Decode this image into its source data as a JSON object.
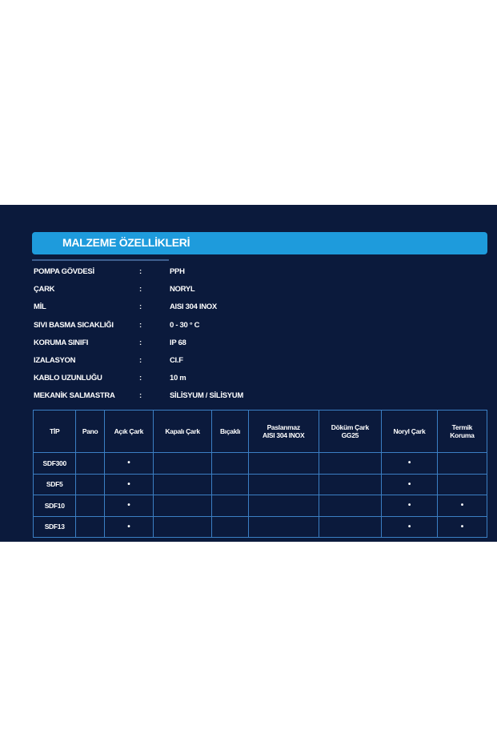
{
  "section_title": "MALZEME ÖZELLİKLERİ",
  "specs": [
    {
      "label": "POMPA GÖVDESİ",
      "value": "PPH"
    },
    {
      "label": "ÇARK",
      "value": "NORYL"
    },
    {
      "label": "MİL",
      "value": "AISI 304 INOX"
    },
    {
      "label": "SIVI BASMA SICAKLIĞI",
      "value": "0 - 30 ° C"
    },
    {
      "label": "KORUMA SINIFI",
      "value": "IP 68"
    },
    {
      "label": "IZALASYON",
      "value": "CI.F"
    },
    {
      "label": "KABLO UZUNLUĞU",
      "value": "10 m"
    },
    {
      "label": "MEKANİK SALMASTRA",
      "value": "SİLİSYUM / SİLİSYUM"
    }
  ],
  "separator": ":",
  "table": {
    "headers": [
      "TİP",
      "Pano",
      "Açık Çark",
      "Kapalı Çark",
      "Bıçaklı",
      "Paslanmaz\nAISI 304 INOX",
      "Döküm Çark\nGG25",
      "Noryl Çark",
      "Termik\nKoruma"
    ],
    "rows": [
      [
        "SDF300",
        "",
        "•",
        "",
        "",
        "",
        "",
        "•",
        ""
      ],
      [
        "SDF5",
        "",
        "•",
        "",
        "",
        "",
        "",
        "•",
        ""
      ],
      [
        "SDF10",
        "",
        "•",
        "",
        "",
        "",
        "",
        "•",
        "•"
      ],
      [
        "SDF13",
        "",
        "•",
        "",
        "",
        "",
        "",
        "•",
        "•"
      ]
    ]
  },
  "colors": {
    "panel": "#0b1a3c",
    "accent": "#1e9bdc",
    "grid": "#3b7fc4"
  }
}
